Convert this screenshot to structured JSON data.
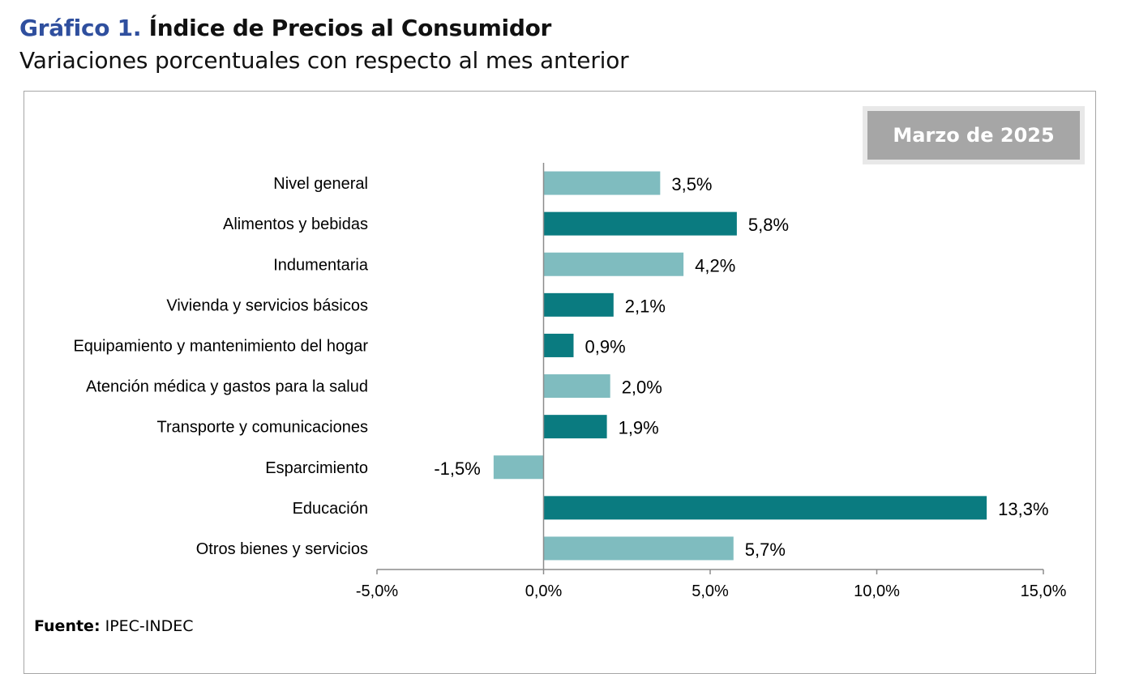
{
  "header": {
    "title_prefix": "Gráfico 1.",
    "title": "Índice de Precios al Consumidor",
    "subtitle": "Variaciones porcentuales con respecto al mes anterior"
  },
  "period_label": "Marzo de 2025",
  "source": {
    "label": "Fuente:",
    "text": "IPEC-INDEC"
  },
  "colors": {
    "light": "#7FBCBF",
    "dark": "#0A7B80",
    "title_blue": "#2F4F9E",
    "period_bg": "#a6a6a6"
  },
  "chart_data": {
    "type": "bar",
    "orientation": "horizontal",
    "categories": [
      "Nivel general",
      "Alimentos y bebidas",
      "Indumentaria",
      "Vivienda y servicios básicos",
      "Equipamiento y mantenimiento del hogar",
      "Atención médica y gastos para la salud",
      "Transporte y comunicaciones",
      "Esparcimiento",
      "Educación",
      "Otros bienes y servicios"
    ],
    "values": [
      3.5,
      5.8,
      4.2,
      2.1,
      0.9,
      2.0,
      1.9,
      -1.5,
      13.3,
      5.7
    ],
    "value_labels": [
      "3,5%",
      "5,8%",
      "4,2%",
      "2,1%",
      "0,9%",
      "2,0%",
      "1,9%",
      "-1,5%",
      "13,3%",
      "5,7%"
    ],
    "bar_colors": [
      "light",
      "dark",
      "light",
      "dark",
      "dark",
      "light",
      "dark",
      "light",
      "dark",
      "light"
    ],
    "xlim": [
      -5,
      15
    ],
    "xticks": [
      -5,
      0,
      5,
      10,
      15
    ],
    "xtick_labels": [
      "-5,0%",
      "0,0%",
      "5,0%",
      "10,0%",
      "15,0%"
    ],
    "grid": false,
    "legend": "none"
  }
}
